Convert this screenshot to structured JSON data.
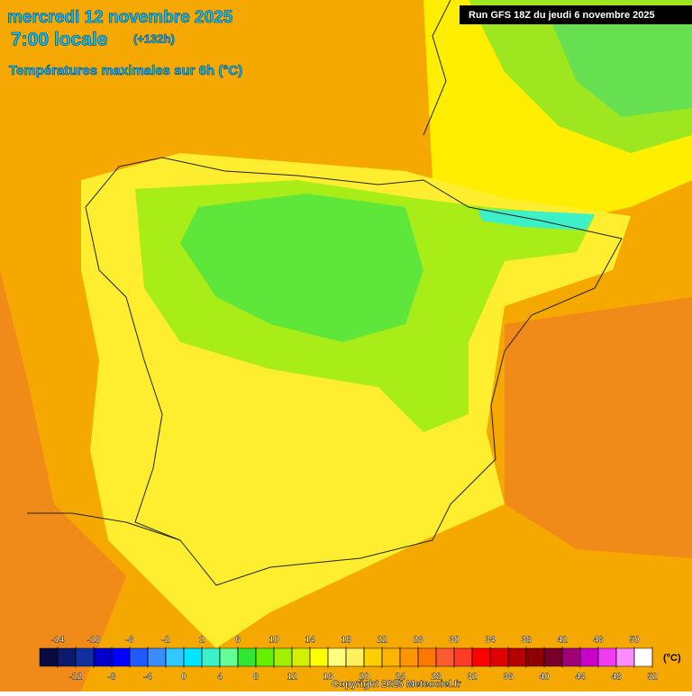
{
  "header": {
    "date": "mercredi 12 novembre 2025",
    "time": "7:00 locale",
    "lead": "(+132h)",
    "parameter": "Températures maximales sur 6h (°C)",
    "run": "Run GFS 18Z du jeudi 6 novembre 2025"
  },
  "colorbar": {
    "ticks": [
      -14,
      -12,
      -10,
      -8,
      -6,
      -4,
      -2,
      0,
      2,
      4,
      6,
      8,
      10,
      12,
      14,
      16,
      18,
      20,
      22,
      24,
      26,
      28,
      30,
      32,
      34,
      36,
      38,
      40,
      42,
      44,
      46,
      48,
      50,
      52
    ],
    "colors": [
      "#0a0a40",
      "#0d1a6b",
      "#1030a0",
      "#0000c8",
      "#0000ff",
      "#1e5aff",
      "#3c8cff",
      "#32c8ff",
      "#00e6ff",
      "#3cf0c8",
      "#64ff96",
      "#32e632",
      "#64f000",
      "#a0f000",
      "#d2f000",
      "#ffff00",
      "#ffff80",
      "#fff060",
      "#ffd000",
      "#ffb400",
      "#ff9600",
      "#ff7800",
      "#ff5a32",
      "#ff3c28",
      "#ff0000",
      "#e00000",
      "#b40000",
      "#8c0000",
      "#780028",
      "#a00078",
      "#c800c8",
      "#f03cf0",
      "#ff8cff",
      "#ffffff"
    ],
    "unit": "(°C)"
  },
  "footer": {
    "copyright": "Copyright 2025 Meteociel.fr"
  }
}
